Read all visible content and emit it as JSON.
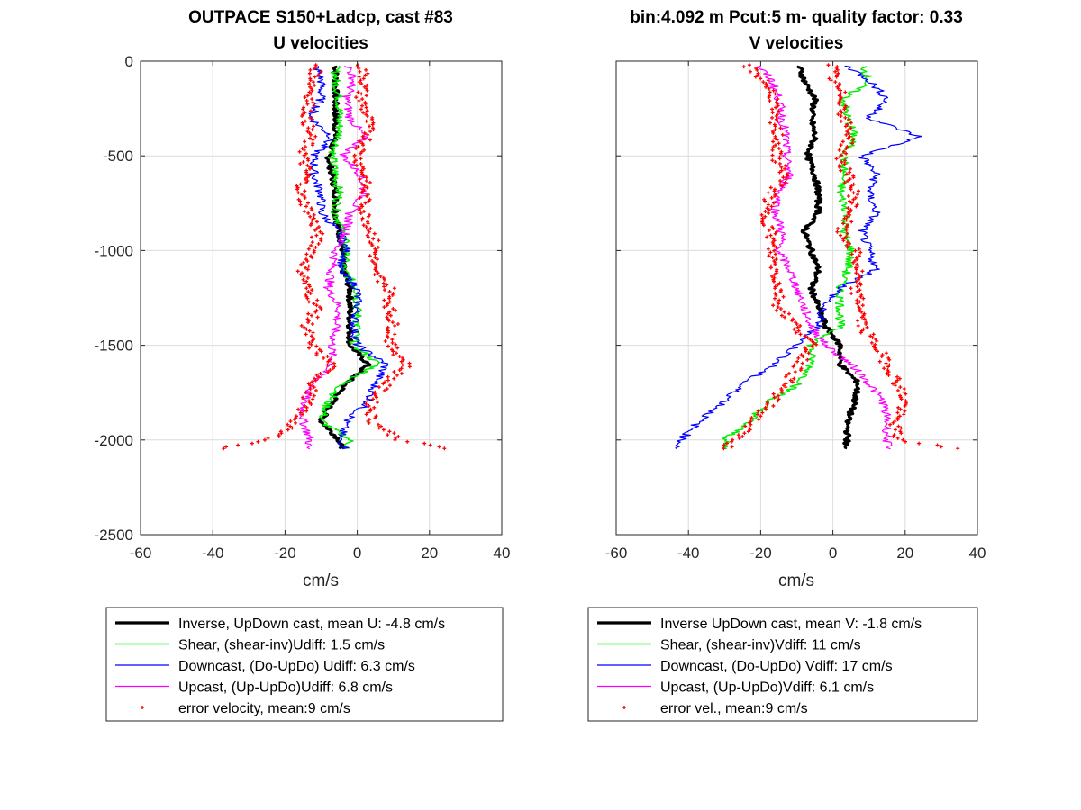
{
  "chart_data": [
    {
      "type": "line",
      "title": "OUTPACE S150+Ladcp, cast #83",
      "subtitle": "U velocities",
      "xlabel": "cm/s",
      "ylabel": "",
      "xlim": [
        -60,
        40
      ],
      "ylim": [
        -2500,
        0
      ],
      "xticks": [
        -60,
        -40,
        -20,
        0,
        20,
        40
      ],
      "yticks": [
        0,
        -500,
        -1000,
        -1500,
        -2000,
        -2500
      ],
      "grid": true,
      "legend_position": "below",
      "depth": [
        0,
        -100,
        -200,
        -300,
        -400,
        -500,
        -600,
        -700,
        -800,
        -900,
        -1000,
        -1100,
        -1200,
        -1300,
        -1400,
        -1500,
        -1600,
        -1700,
        -1800,
        -1900,
        -2000,
        -2050
      ],
      "series": [
        {
          "name": "Inverse, UpDown cast, mean U:  -4.8 cm/s",
          "color": "#000000",
          "width": 3.2,
          "values": [
            -6,
            -6,
            -6,
            -6,
            -6,
            -8,
            -7,
            -6,
            -6,
            -5,
            -4,
            -4,
            -2,
            -2,
            -2,
            -2,
            3,
            -3,
            -7,
            -10,
            -5,
            -4
          ]
        },
        {
          "name": "Shear, (shear-inv)Udiff:  1.5 cm/s",
          "color": "#00ee00",
          "width": 1.4,
          "values": [
            -6,
            -6,
            -5,
            -5,
            -5,
            -7,
            -6,
            -5,
            -6,
            -4,
            -3,
            -4,
            0,
            0,
            0,
            -1,
            6,
            -4,
            -8,
            -10,
            -2,
            -3
          ]
        },
        {
          "name": "Downcast, (Do-UpDo) Udiff:  6.3 cm/s",
          "color": "#0000ff",
          "width": 1.2,
          "values": [
            -12,
            -10,
            -10,
            -13,
            -7,
            -12,
            -12,
            -10,
            -10,
            -5,
            -3,
            -5,
            0,
            0,
            -1,
            0,
            8,
            5,
            3,
            -3,
            -5,
            -3
          ]
        },
        {
          "name": "Upcast, (Up-UpDo)Udiff:  6.8 cm/s",
          "color": "#ff00ff",
          "width": 1.2,
          "values": [
            -3,
            -1,
            -3,
            -2,
            2,
            -4,
            1,
            2,
            -2,
            -3,
            -6,
            -7,
            -8,
            -5,
            -6,
            -7,
            -7,
            -12,
            -15,
            -15,
            -13,
            -14
          ]
        },
        {
          "name": "error velocity, mean:9 cm/s",
          "color": "#ff0000",
          "marker": "+",
          "series_kind": "error-envelope",
          "values_minus": [
            -11,
            -12,
            -13,
            -14,
            -13,
            -15,
            -14,
            -16,
            -13,
            -11,
            -12,
            -15,
            -14,
            -11,
            -14,
            -13,
            -7,
            -12,
            -14,
            -17,
            -24,
            -40
          ],
          "values_plus": [
            1,
            2,
            1,
            3,
            3,
            0,
            2,
            2,
            2,
            4,
            5,
            4,
            9,
            9,
            10,
            9,
            14,
            8,
            4,
            4,
            12,
            26
          ]
        }
      ]
    },
    {
      "type": "line",
      "title": "bin:4.092 m  Pcut:5 m- quality factor:  0.33",
      "subtitle": "V velocities",
      "xlabel": "cm/s",
      "ylabel": "",
      "xlim": [
        -60,
        40
      ],
      "ylim": [
        -2500,
        0
      ],
      "xticks": [
        -60,
        -40,
        -20,
        0,
        20,
        40
      ],
      "yticks": [
        0,
        -500,
        -1000,
        -1500,
        -2000,
        -2500
      ],
      "grid": true,
      "legend_position": "below",
      "depth": [
        0,
        -100,
        -200,
        -300,
        -400,
        -500,
        -600,
        -700,
        -800,
        -900,
        -1000,
        -1100,
        -1200,
        -1300,
        -1400,
        -1500,
        -1600,
        -1700,
        -1800,
        -1900,
        -2000,
        -2050
      ],
      "series": [
        {
          "name": "Inverse UpDown cast, mean V:  -1.8 cm/s",
          "color": "#000000",
          "width": 3.2,
          "values": [
            -10,
            -8,
            -5,
            -6,
            -5,
            -7,
            -5,
            -4,
            -4,
            -8,
            -6,
            -4,
            -6,
            -4,
            -2,
            2,
            2,
            7,
            6,
            4,
            4,
            3
          ]
        },
        {
          "name": "Shear, (shear-inv)Vdiff:  11 cm/s",
          "color": "#00ee00",
          "width": 1.4,
          "values": [
            8,
            10,
            3,
            4,
            6,
            3,
            3,
            2,
            4,
            3,
            5,
            4,
            2,
            2,
            2,
            -6,
            -6,
            -9,
            -18,
            -23,
            -30,
            -30
          ]
        },
        {
          "name": "Downcast, (Do-UpDo) Vdiff:  17 cm/s",
          "color": "#0000ff",
          "width": 1.2,
          "values": [
            2,
            10,
            15,
            10,
            24,
            8,
            12,
            10,
            12,
            8,
            10,
            12,
            2,
            -3,
            -4,
            -10,
            -16,
            -25,
            -30,
            -37,
            -42,
            -43
          ]
        },
        {
          "name": "Upcast, (Up-UpDo)Vdiff:  6.1 cm/s",
          "color": "#ff00ff",
          "width": 1.2,
          "values": [
            -22,
            -17,
            -15,
            -14,
            -13,
            -13,
            -12,
            -15,
            -16,
            -14,
            -15,
            -12,
            -10,
            -8,
            -6,
            -2,
            5,
            10,
            14,
            15,
            15,
            15
          ]
        },
        {
          "name": "error vel., mean:9 cm/s",
          "color": "#ff0000",
          "marker": "+",
          "series_kind": "error-envelope",
          "values_minus": [
            -25,
            -19,
            -16,
            -17,
            -15,
            -16,
            -13,
            -17,
            -19,
            -17,
            -17,
            -16,
            -15,
            -15,
            -10,
            -6,
            -9,
            -13,
            -17,
            -22,
            -27,
            -30
          ],
          "values_plus": [
            0,
            0,
            3,
            3,
            5,
            2,
            4,
            6,
            5,
            2,
            6,
            7,
            6,
            8,
            8,
            12,
            15,
            18,
            20,
            17,
            18,
            36
          ]
        }
      ]
    }
  ]
}
